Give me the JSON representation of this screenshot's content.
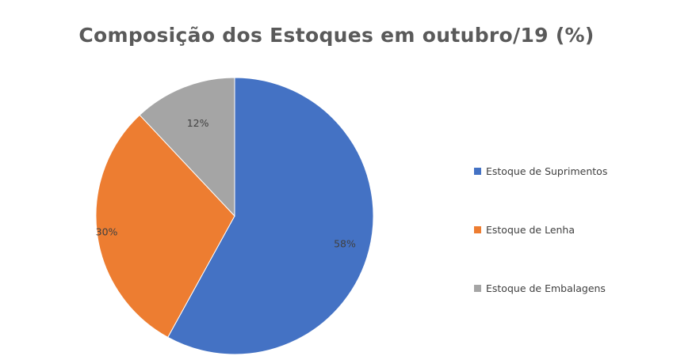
{
  "chart_data": {
    "type": "pie",
    "title": "Composição dos Estoques em outubro/19 (%)",
    "categories": [
      "Estoque de Suprimentos",
      "Estoque de Lenha",
      "Estoque de Embalagens"
    ],
    "values": [
      58,
      30,
      12
    ],
    "data_labels": [
      "58%",
      "30%",
      "12%"
    ],
    "colors": [
      "#4472c4",
      "#ed7d31",
      "#a5a5a5"
    ],
    "start_angle_deg": 0,
    "direction": "clockwise",
    "legend_position": "right"
  }
}
